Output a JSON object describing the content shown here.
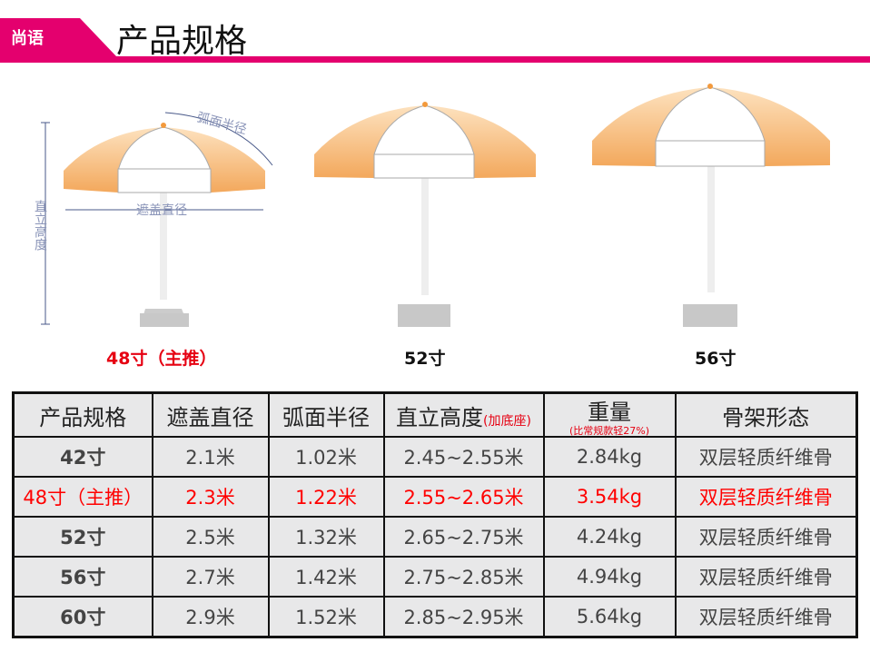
{
  "header": {
    "brand": "尚语",
    "title": "产品规格",
    "accent": "#e4006e"
  },
  "diagram": {
    "arc_radius_label": "弧面半径",
    "cover_diameter_label": "遮盖直径",
    "height_label": "直立高度"
  },
  "umbrellas": [
    {
      "label": "48寸（主推）",
      "highlight": true
    },
    {
      "label": "52寸"
    },
    {
      "label": "56寸"
    }
  ],
  "table": {
    "headers": [
      "产品规格",
      "遮盖直径",
      "弧面半径",
      "直立高度",
      "重量",
      "骨架形态"
    ],
    "height_note": "(加底座)",
    "weight_note": "(比常规款轻27%)",
    "rows": [
      [
        "42寸",
        "2.1米",
        "1.02米",
        "2.45~2.55米",
        "2.84kg",
        "双层轻质纤维骨"
      ],
      [
        "48寸（主推）",
        "2.3米",
        "1.22米",
        "2.55~2.65米",
        "3.54kg",
        "双层轻质纤维骨"
      ],
      [
        "52寸",
        "2.5米",
        "1.32米",
        "2.65~2.75米",
        "4.24kg",
        "双层轻质纤维骨"
      ],
      [
        "56寸",
        "2.7米",
        "1.42米",
        "2.75~2.85米",
        "4.94kg",
        "双层轻质纤维骨"
      ],
      [
        "60寸",
        "2.9米",
        "1.52米",
        "2.85~2.95米",
        "5.64kg",
        "双层轻质纤维骨"
      ]
    ],
    "highlight_row": 1,
    "highlight_color": "#ff0000"
  }
}
